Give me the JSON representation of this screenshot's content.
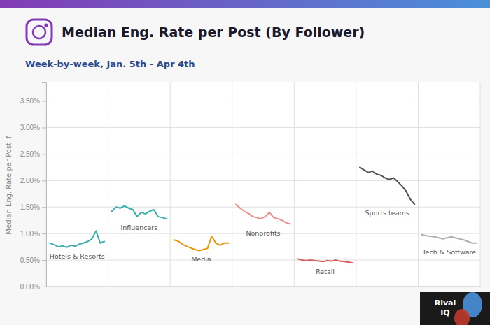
{
  "chart_data": {
    "type": "line",
    "title": "Median Eng. Rate per Post (By Follower)",
    "subtitle": "Week-by-week, Jan. 5th - Apr 4th",
    "ylabel": "Median Eng. Rate per Post ↑",
    "ylim": [
      0.0,
      0.0385
    ],
    "yticks": [
      {
        "value": 0.0,
        "label": "0.00%"
      },
      {
        "value": 0.005,
        "label": "0.50%"
      },
      {
        "value": 0.01,
        "label": "1.00%"
      },
      {
        "value": 0.015,
        "label": "1.50%"
      },
      {
        "value": 0.02,
        "label": "2.00%"
      },
      {
        "value": 0.025,
        "label": "2.50%"
      },
      {
        "value": 0.03,
        "label": "3.00%"
      },
      {
        "value": 0.035,
        "label": "3.50%"
      }
    ],
    "grid": true,
    "tick_labels": "y",
    "annotations": [
      "Rival",
      "IQ"
    ],
    "series": [
      {
        "name": "Hotels & Resorts",
        "color": "#3aafa9",
        "values": [
          0.0082,
          0.0079,
          0.0075,
          0.0077,
          0.0074,
          0.0078,
          0.0076,
          0.008,
          0.0082,
          0.0085,
          0.009,
          0.0105,
          0.0082,
          0.0085
        ]
      },
      {
        "name": "Influencers",
        "color": "#3aafa9",
        "values": [
          0.0142,
          0.015,
          0.0148,
          0.0152,
          0.0148,
          0.0145,
          0.0132,
          0.014,
          0.0137,
          0.0142,
          0.0145,
          0.0132,
          0.013,
          0.0128
        ]
      },
      {
        "name": "Media",
        "color": "#e8960c",
        "values": [
          0.0088,
          0.0086,
          0.008,
          0.0076,
          0.0073,
          0.007,
          0.0068,
          0.007,
          0.0072,
          0.0095,
          0.0082,
          0.0078,
          0.0082,
          0.0082
        ]
      },
      {
        "name": "Nonprofits",
        "color": "#e8908a",
        "values": [
          0.0155,
          0.0148,
          0.0142,
          0.0138,
          0.0132,
          0.013,
          0.0128,
          0.0132,
          0.014,
          0.013,
          0.0128,
          0.0125,
          0.012,
          0.0118
        ]
      },
      {
        "name": "Retail",
        "color": "#d96060",
        "values": [
          0.0052,
          0.005,
          0.0049,
          0.005,
          0.0049,
          0.0048,
          0.0047,
          0.0049,
          0.0048,
          0.005,
          0.0048,
          0.0047,
          0.0046,
          0.0045
        ]
      },
      {
        "name": "Sports teams",
        "color": "#505050",
        "values": [
          0.0225,
          0.022,
          0.0215,
          0.0218,
          0.0212,
          0.021,
          0.0205,
          0.0202,
          0.0205,
          0.0198,
          0.019,
          0.018,
          0.0165,
          0.0155
        ]
      },
      {
        "name": "Tech & Software",
        "color": "#b0b0b0",
        "values": [
          0.0098,
          0.0096,
          0.0095,
          0.0094,
          0.0092,
          0.009,
          0.0092,
          0.0094,
          0.0092,
          0.009,
          0.0088,
          0.0085,
          0.0082,
          0.0082
        ]
      }
    ]
  }
}
